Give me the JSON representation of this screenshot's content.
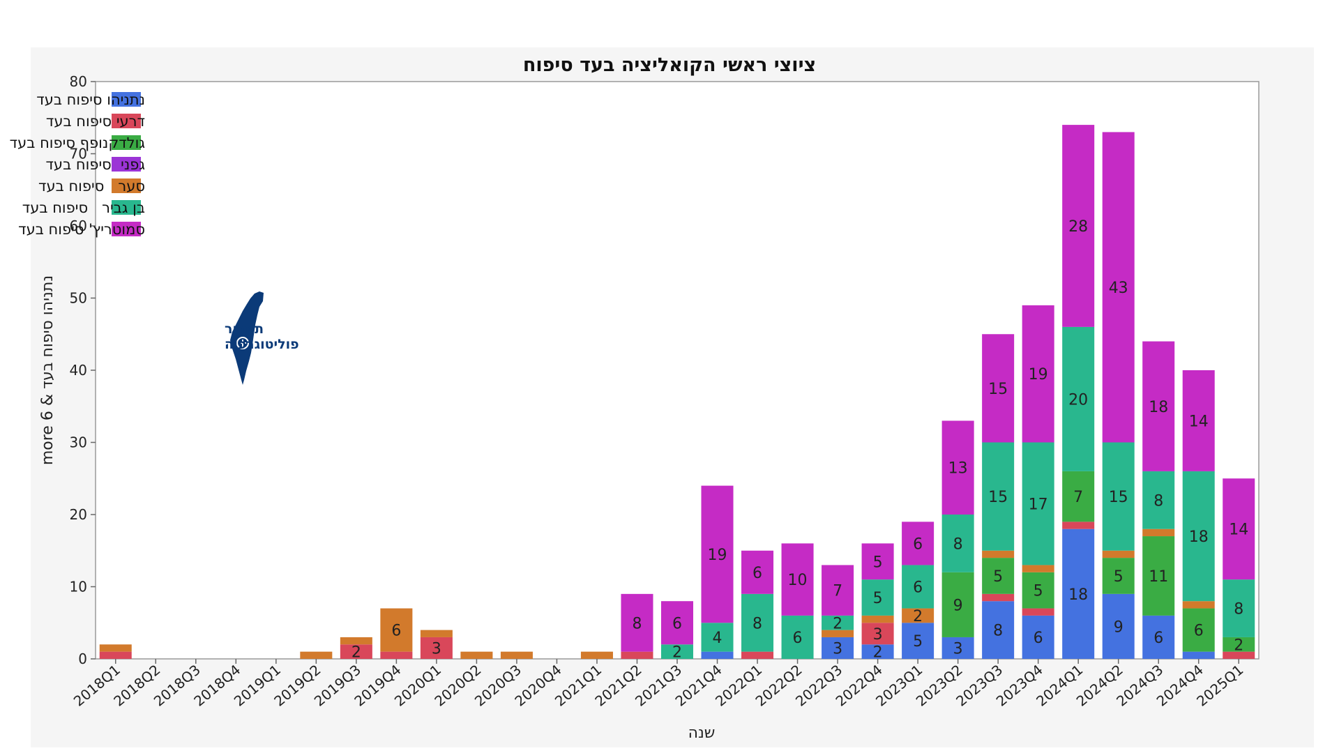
{
  "chart_data": {
    "type": "bar",
    "stacked": true,
    "title": "ציוצי ראשי הקואליציה בעד סיפוח",
    "xlabel": "שנה",
    "ylabel": "more נתניהו סיפוח בעד & 6",
    "ylim": [
      0,
      80
    ],
    "yticks": [
      0,
      10,
      20,
      30,
      40,
      50,
      60,
      70,
      80
    ],
    "grid": false,
    "legend_position": "top-left",
    "categories": [
      "2018Q1",
      "2018Q2",
      "2018Q3",
      "2018Q4",
      "2019Q1",
      "2019Q2",
      "2019Q3",
      "2019Q4",
      "2020Q1",
      "2020Q2",
      "2020Q3",
      "2020Q4",
      "2021Q1",
      "2021Q2",
      "2021Q3",
      "2021Q4",
      "2022Q1",
      "2022Q2",
      "2022Q3",
      "2022Q4",
      "2023Q1",
      "2023Q2",
      "2023Q3",
      "2023Q4",
      "2024Q1",
      "2024Q2",
      "2024Q3",
      "2024Q4",
      "2025Q1"
    ],
    "series": [
      {
        "name": "נתניהו סיפוח בעד",
        "color": "#4472e0",
        "values": [
          0,
          0,
          0,
          0,
          0,
          0,
          0,
          0,
          0,
          0,
          0,
          0,
          0,
          0,
          0,
          1,
          0,
          0,
          3,
          2,
          5,
          3,
          8,
          6,
          18,
          9,
          6,
          1,
          0
        ]
      },
      {
        "name": "דרעי סיפוח בעד",
        "color": "#d9475a",
        "values": [
          1,
          0,
          0,
          0,
          0,
          0,
          2,
          1,
          3,
          0,
          0,
          0,
          0,
          1,
          0,
          0,
          1,
          0,
          0,
          3,
          0,
          0,
          1,
          1,
          1,
          0,
          0,
          0,
          1
        ]
      },
      {
        "name": "גולדקנופף סיפוח בעד",
        "color": "#3aac44",
        "values": [
          0,
          0,
          0,
          0,
          0,
          0,
          0,
          0,
          0,
          0,
          0,
          0,
          0,
          0,
          0,
          0,
          0,
          0,
          0,
          0,
          0,
          9,
          5,
          5,
          7,
          5,
          11,
          6,
          2
        ]
      },
      {
        "name": "גפני  סיפוח בעד",
        "color": "#9b34d6",
        "values": [
          0,
          0,
          0,
          0,
          0,
          0,
          0,
          0,
          0,
          0,
          0,
          0,
          0,
          0,
          0,
          0,
          0,
          0,
          0,
          0,
          0,
          0,
          0,
          0,
          0,
          0,
          0,
          0,
          0
        ]
      },
      {
        "name": "סער   סיפוח בעד",
        "color": "#d27a2c",
        "values": [
          1,
          0,
          0,
          0,
          0,
          1,
          1,
          6,
          1,
          1,
          1,
          0,
          1,
          0,
          0,
          0,
          0,
          0,
          1,
          1,
          2,
          0,
          1,
          1,
          0,
          1,
          1,
          1,
          0
        ]
      },
      {
        "name": "בן גביר   סיפוח בעד",
        "color": "#29b78e",
        "values": [
          0,
          0,
          0,
          0,
          0,
          0,
          0,
          0,
          0,
          0,
          0,
          0,
          0,
          0,
          2,
          4,
          8,
          6,
          2,
          5,
          6,
          8,
          15,
          17,
          20,
          15,
          8,
          18,
          8
        ]
      },
      {
        "name": "סמוטריץ' סיפוח בעד",
        "color": "#c52bc5",
        "values": [
          0,
          0,
          0,
          0,
          0,
          0,
          0,
          0,
          0,
          0,
          0,
          0,
          0,
          8,
          6,
          19,
          6,
          10,
          7,
          5,
          6,
          13,
          15,
          19,
          28,
          43,
          18,
          14,
          14
        ]
      }
    ]
  },
  "logo": {
    "line1": "תמרור",
    "line2": "פוליטוגרפיה"
  }
}
